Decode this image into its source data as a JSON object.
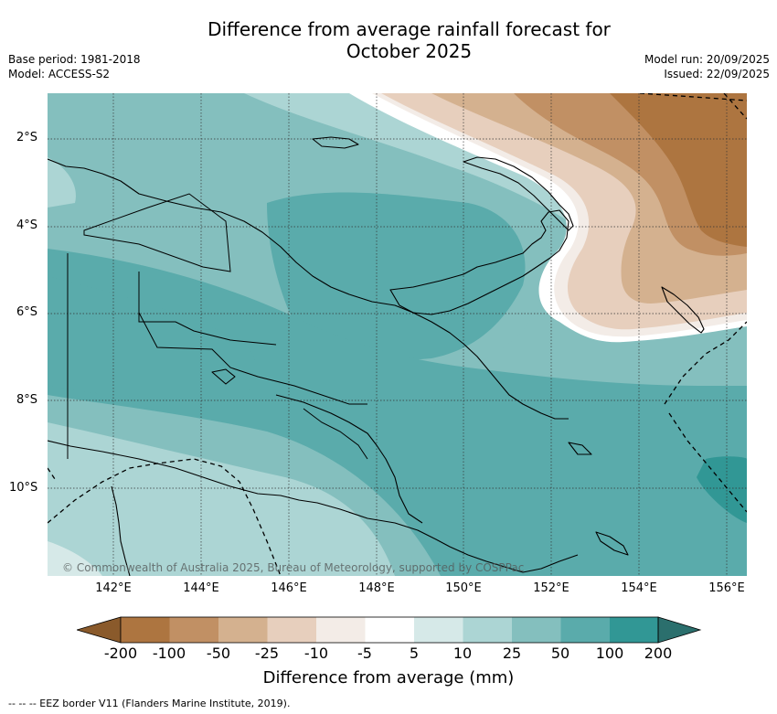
{
  "title_line1": "Difference from average rainfall forecast for",
  "title_line2": "October 2025",
  "meta": {
    "base_period": "Base period: 1981-2018",
    "model": "Model: ACCESS-S2",
    "model_run": "Model run: 20/09/2025",
    "issued": "Issued: 22/09/2025"
  },
  "lat_labels": [
    "2°S",
    "4°S",
    "6°S",
    "8°S",
    "10°S"
  ],
  "lon_labels": [
    "142°E",
    "144°E",
    "146°E",
    "148°E",
    "150°E",
    "152°E",
    "154°E",
    "156°E"
  ],
  "copyright": "© Commonwealth of Australia 2025, Bureau of Meteorology, supported by COSPPac",
  "colorbar": {
    "ticks": [
      "-200",
      "-100",
      "-50",
      "-25",
      "-10",
      "-5",
      "5",
      "10",
      "25",
      "50",
      "100",
      "200"
    ],
    "colors": [
      "#8a5a2b",
      "#ad7540",
      "#c19064",
      "#d4b18f",
      "#e7cfbd",
      "#f3ece7",
      "#ffffff",
      "#d6e9e8",
      "#acd5d4",
      "#84bfbe",
      "#5aabab",
      "#319795",
      "#2b6f6d"
    ],
    "label": "Difference from average (mm)"
  },
  "legend_note": "--  --  -- EEZ border V11 (Flanders Marine Institute, 2019)."
}
